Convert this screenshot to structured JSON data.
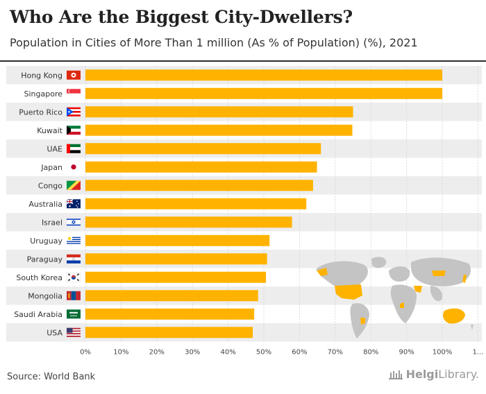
{
  "header": {
    "title": "Who Are the Biggest City-Dwellers?",
    "subtitle": "Population in Cities of More Than 1 million (As % of Population) (%), 2021"
  },
  "footer": {
    "source": "Source: World Bank",
    "brand_bold": "Helgi",
    "brand_rest": "Library."
  },
  "colors": {
    "bar": "#FFB300",
    "row_stripe": "#EDEDED",
    "map_land": "#C4C4C4",
    "map_highlight": "#FFB300"
  },
  "chart_data": {
    "type": "bar",
    "orientation": "horizontal",
    "categories": [
      "Hong Kong",
      "Singapore",
      "Puerto Rico",
      "Kuwait",
      "UAE",
      "Japan",
      "Congo",
      "Australia",
      "Israel",
      "Uruguay",
      "Paraguay",
      "South Korea",
      "Mongolia",
      "Saudi Arabia",
      "USA"
    ],
    "values": [
      100,
      100,
      75,
      74.8,
      66,
      64.9,
      63.8,
      61.9,
      57.9,
      51.6,
      50.9,
      50.6,
      48.4,
      47.3,
      46.9
    ],
    "flags": [
      "hong-kong-flag",
      "singapore-flag",
      "puerto-rico-flag",
      "kuwait-flag",
      "uae-flag",
      "japan-flag",
      "congo-flag",
      "australia-flag",
      "israel-flag",
      "uruguay-flag",
      "paraguay-flag",
      "south-korea-flag",
      "mongolia-flag",
      "saudi-arabia-flag",
      "usa-flag"
    ],
    "x_ticks": [
      "0%",
      "10%",
      "20%",
      "30%",
      "40%",
      "50%",
      "60%",
      "70%",
      "80%",
      "90%",
      "100%",
      "1..."
    ],
    "xlim": [
      0,
      110
    ],
    "grid": true,
    "legend": "none"
  }
}
